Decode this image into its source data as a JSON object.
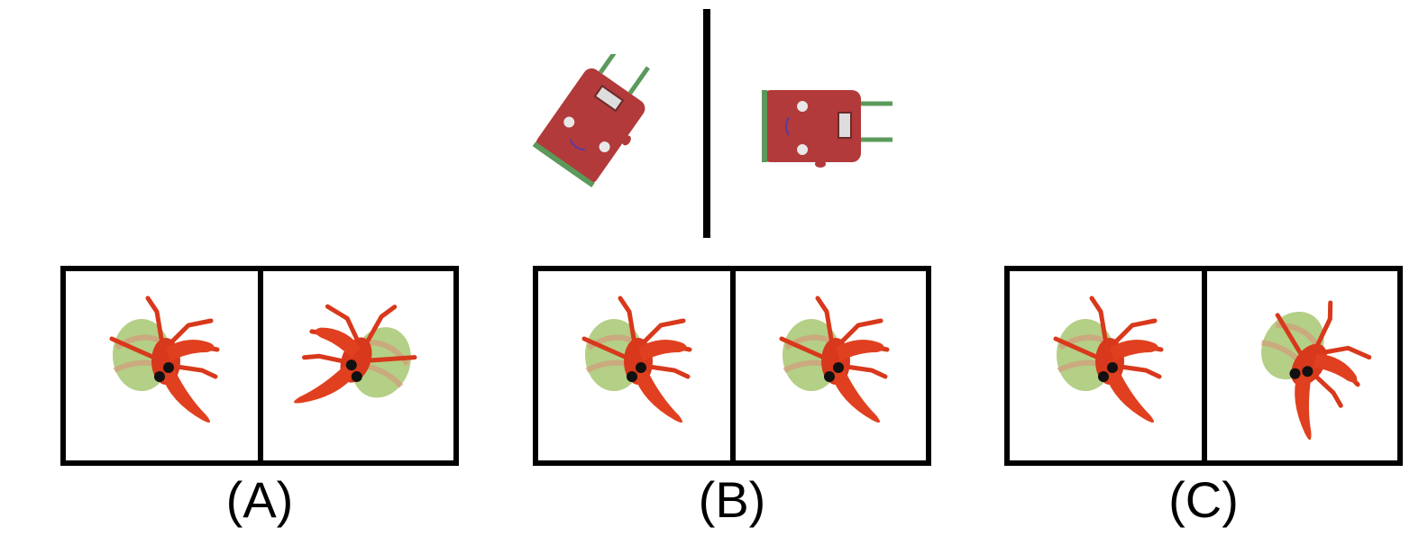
{
  "reference": {
    "left_object": "backpack-rotated-left",
    "right_object": "backpack-rotated-right"
  },
  "options": [
    {
      "label": "(A)",
      "left_icon": "hermit-crab",
      "right_icon": "hermit-crab-rotated-left"
    },
    {
      "label": "(B)",
      "left_icon": "hermit-crab",
      "right_icon": "hermit-crab"
    },
    {
      "label": "(C)",
      "left_icon": "hermit-crab",
      "right_icon": "hermit-crab-rotated-upright"
    }
  ],
  "colors": {
    "backpack_body": "#b23a3a",
    "backpack_trim": "#5b9a5b",
    "crab_body": "#d8381b",
    "shell": "#b4cf86",
    "border": "#000000"
  }
}
